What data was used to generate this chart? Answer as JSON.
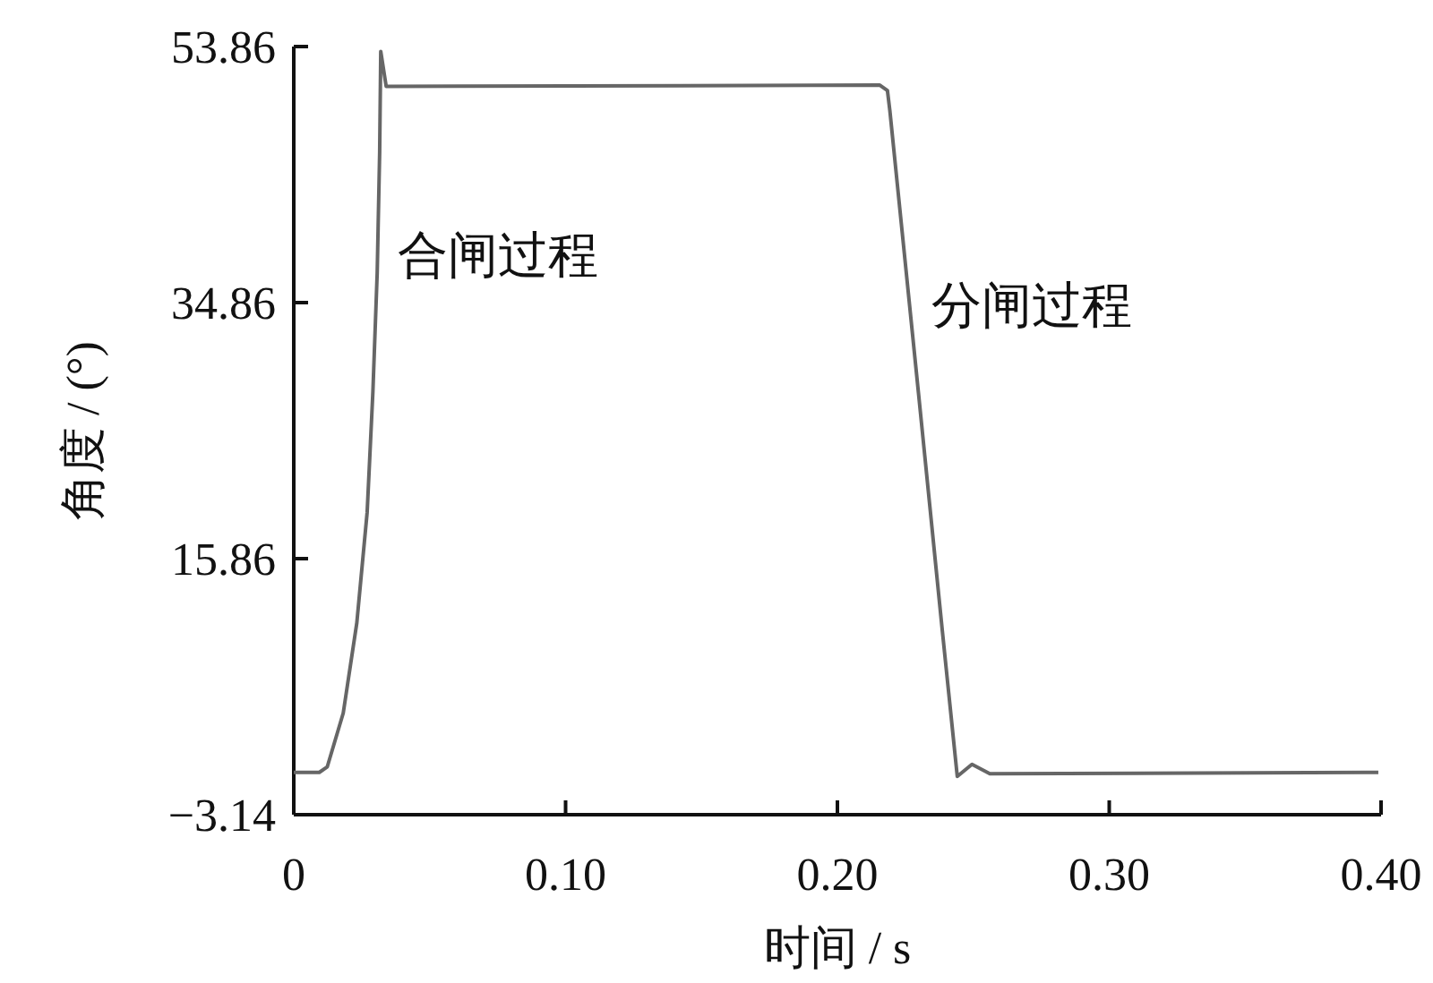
{
  "chart_data": {
    "type": "line",
    "xlabel": "时间 / s",
    "ylabel": "角度 / (°)",
    "x": [
      0,
      0.0094,
      0.0123,
      0.0182,
      0.0232,
      0.027,
      0.0291,
      0.0307,
      0.0316,
      0.032,
      0.034,
      0.2156,
      0.2184,
      0.2193,
      0.2298,
      0.2386,
      0.2441,
      0.2495,
      0.2561,
      0.399
    ],
    "series": [
      {
        "color": "#666666",
        "values": [
          0,
          0,
          0.4,
          4.4,
          11.1,
          19.3,
          28.2,
          37.1,
          46.0,
          53.5,
          50.9,
          51.0,
          50.6,
          49.1,
          28.2,
          10.5,
          -0.3,
          0.6,
          -0.1,
          0
        ]
      }
    ],
    "xlim": [
      0,
      0.4
    ],
    "ylim": [
      -3.14,
      53.86
    ],
    "xticks": [
      0,
      {
        "value": 0.1,
        "label": "0.10"
      },
      {
        "value": 0.2,
        "label": "0.20"
      },
      {
        "value": 0.3,
        "label": "0.30"
      },
      {
        "value": 0.4,
        "label": "0.40"
      }
    ],
    "yticks": [
      {
        "value": -3.14,
        "label": "−3.14"
      },
      15.86,
      34.86,
      53.86
    ],
    "annotations": [
      "合闸过程",
      "分闸过程"
    ],
    "grid": false,
    "marker": "none",
    "line_style": "solid"
  }
}
